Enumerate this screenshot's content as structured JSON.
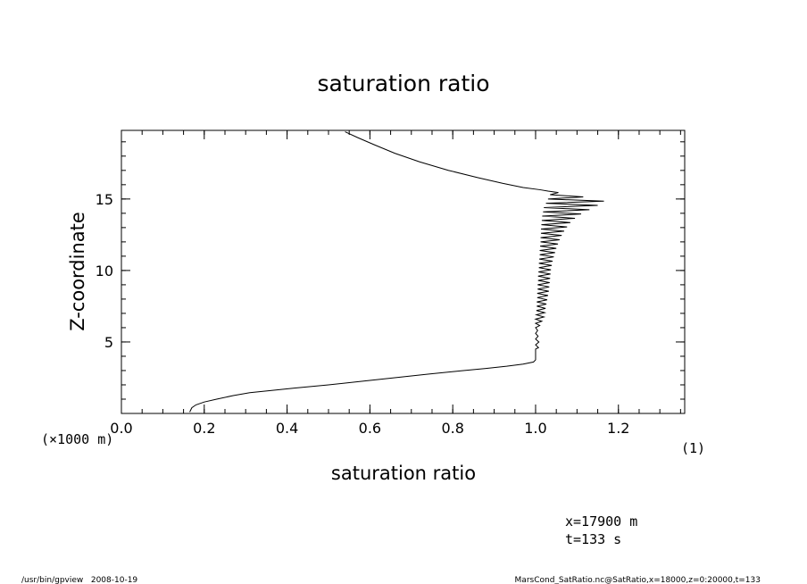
{
  "chart_data": {
    "type": "line",
    "title": "saturation ratio",
    "xlabel": "saturation ratio",
    "ylabel": "Z-coordinate",
    "y_unit_label": "(×1000 m)",
    "x_unit_label": "(1)",
    "xlim": [
      0.0,
      1.36
    ],
    "ylim": [
      0,
      19.8
    ],
    "x_ticks": [
      "0.0",
      "0.2",
      "0.4",
      "0.6",
      "0.8",
      "1.0",
      "1.2"
    ],
    "y_ticks": [
      "5",
      "10",
      "15"
    ],
    "grid": false,
    "series": [
      {
        "points": [
          [
            0.165,
            0.1
          ],
          [
            0.17,
            0.4
          ],
          [
            0.18,
            0.6
          ],
          [
            0.2,
            0.8
          ],
          [
            0.23,
            1.0
          ],
          [
            0.27,
            1.25
          ],
          [
            0.31,
            1.45
          ],
          [
            0.36,
            1.6
          ],
          [
            0.42,
            1.78
          ],
          [
            0.5,
            2.0
          ],
          [
            0.58,
            2.25
          ],
          [
            0.66,
            2.5
          ],
          [
            0.74,
            2.75
          ],
          [
            0.82,
            2.98
          ],
          [
            0.88,
            3.15
          ],
          [
            0.93,
            3.3
          ],
          [
            0.97,
            3.45
          ],
          [
            0.995,
            3.6
          ],
          [
            1.0,
            3.75
          ],
          [
            1.0,
            4.5
          ],
          [
            1.007,
            4.6
          ],
          [
            1.0,
            4.8
          ],
          [
            1.008,
            5.0
          ],
          [
            1.0,
            5.2
          ],
          [
            1.006,
            5.4
          ],
          [
            1.0,
            5.6
          ],
          [
            1.005,
            5.8
          ],
          [
            1.0,
            6.0
          ],
          [
            1.01,
            6.15
          ],
          [
            1.0,
            6.3
          ],
          [
            1.015,
            6.45
          ],
          [
            1.0,
            6.6
          ],
          [
            1.02,
            6.75
          ],
          [
            1.002,
            6.9
          ],
          [
            1.022,
            7.05
          ],
          [
            1.002,
            7.2
          ],
          [
            1.024,
            7.35
          ],
          [
            1.003,
            7.5
          ],
          [
            1.026,
            7.65
          ],
          [
            1.003,
            7.8
          ],
          [
            1.028,
            7.95
          ],
          [
            1.004,
            8.1
          ],
          [
            1.03,
            8.25
          ],
          [
            1.004,
            8.4
          ],
          [
            1.032,
            8.55
          ],
          [
            1.005,
            8.7
          ],
          [
            1.033,
            8.85
          ],
          [
            1.005,
            9.0
          ],
          [
            1.034,
            9.15
          ],
          [
            1.006,
            9.3
          ],
          [
            1.035,
            9.45
          ],
          [
            1.006,
            9.6
          ],
          [
            1.036,
            9.75
          ],
          [
            1.007,
            9.9
          ],
          [
            1.037,
            10.05
          ],
          [
            1.008,
            10.2
          ],
          [
            1.039,
            10.35
          ],
          [
            1.008,
            10.5
          ],
          [
            1.041,
            10.65
          ],
          [
            1.009,
            10.8
          ],
          [
            1.044,
            10.95
          ],
          [
            1.01,
            11.1
          ],
          [
            1.047,
            11.25
          ],
          [
            1.01,
            11.4
          ],
          [
            1.05,
            11.55
          ],
          [
            1.011,
            11.7
          ],
          [
            1.054,
            11.85
          ],
          [
            1.012,
            12.0
          ],
          [
            1.058,
            12.15
          ],
          [
            1.012,
            12.3
          ],
          [
            1.063,
            12.45
          ],
          [
            1.013,
            12.6
          ],
          [
            1.069,
            12.75
          ],
          [
            1.013,
            12.9
          ],
          [
            1.076,
            13.05
          ],
          [
            1.014,
            13.2
          ],
          [
            1.084,
            13.35
          ],
          [
            1.015,
            13.5
          ],
          [
            1.095,
            13.65
          ],
          [
            1.016,
            13.8
          ],
          [
            1.11,
            13.95
          ],
          [
            1.018,
            14.1
          ],
          [
            1.13,
            14.25
          ],
          [
            1.02,
            14.4
          ],
          [
            1.15,
            14.55
          ],
          [
            1.025,
            14.7
          ],
          [
            1.165,
            14.85
          ],
          [
            1.03,
            15.0
          ],
          [
            1.115,
            15.15
          ],
          [
            1.035,
            15.3
          ],
          [
            1.055,
            15.45
          ],
          [
            1.03,
            15.55
          ],
          [
            1.01,
            15.65
          ],
          [
            0.97,
            15.8
          ],
          [
            0.92,
            16.1
          ],
          [
            0.86,
            16.5
          ],
          [
            0.79,
            17.0
          ],
          [
            0.72,
            17.6
          ],
          [
            0.66,
            18.2
          ],
          [
            0.61,
            18.8
          ],
          [
            0.57,
            19.3
          ],
          [
            0.54,
            19.7
          ]
        ]
      }
    ]
  },
  "annotations": {
    "position": "x=17900 m",
    "time": "t=133 s"
  },
  "footer": {
    "left": "/usr/bin/gpview   2008-10-19",
    "right": "MarsCond_SatRatio.nc@SatRatio,x=18000,z=0:20000,t=133"
  }
}
